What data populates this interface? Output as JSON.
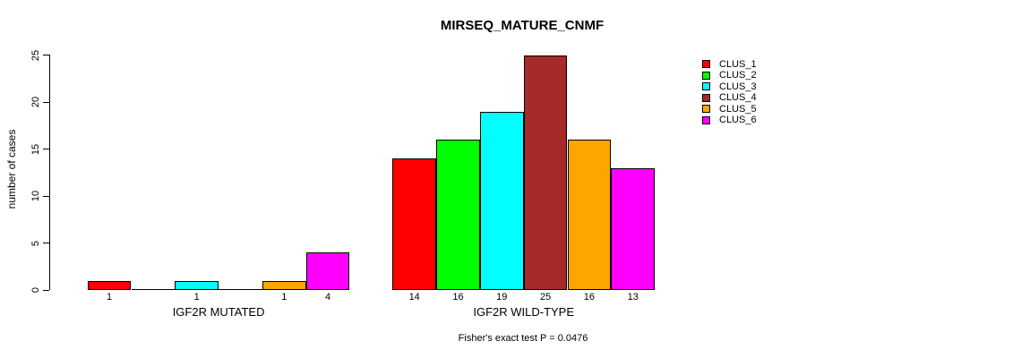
{
  "chart_data": {
    "type": "bar",
    "title": "MIRSEQ_MATURE_CNMF",
    "ylabel": "number of cases",
    "caption": "Fisher's exact test P = 0.0476",
    "ylim": [
      0,
      25
    ],
    "yticks": [
      0,
      5,
      10,
      15,
      20,
      25
    ],
    "grid": false,
    "legend_position": "right",
    "groups": [
      "IGF2R MUTATED",
      "IGF2R WILD-TYPE"
    ],
    "series": [
      {
        "name": "CLUS_1",
        "color": "#FF0000",
        "values": [
          1,
          14
        ]
      },
      {
        "name": "CLUS_2",
        "color": "#00FF00",
        "values": [
          0,
          16
        ]
      },
      {
        "name": "CLUS_3",
        "color": "#00FFFF",
        "values": [
          1,
          19
        ]
      },
      {
        "name": "CLUS_4",
        "color": "#A52A2A",
        "values": [
          0,
          25
        ]
      },
      {
        "name": "CLUS_5",
        "color": "#FFA500",
        "values": [
          1,
          16
        ]
      },
      {
        "name": "CLUS_6",
        "color": "#FF00FF",
        "values": [
          4,
          13
        ]
      }
    ],
    "bar_labels": [
      [
        "1",
        "",
        "1",
        "",
        "1",
        "4"
      ],
      [
        "14",
        "16",
        "19",
        "25",
        "16",
        "13"
      ]
    ],
    "axis_color": "#000000",
    "bar_border_color": "#000000"
  }
}
